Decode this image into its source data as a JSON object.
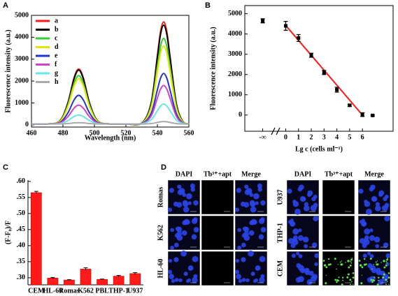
{
  "chart_data": [
    {
      "type": "line",
      "panel": "A",
      "x_label": "Wavelength (nm)",
      "y_label": "Fluorescence intensity (a.u.)",
      "x": [
        460,
        470,
        478,
        483,
        487,
        490,
        493,
        497,
        502,
        510,
        520,
        530,
        536,
        540,
        542,
        544,
        546,
        548,
        552,
        556,
        560
      ],
      "xlim": [
        460,
        560
      ],
      "xticks": [
        460,
        480,
        500,
        520,
        540,
        560
      ],
      "ylim": [
        -100,
        5000
      ],
      "yticks": [
        0,
        1000,
        2000,
        3000,
        4000,
        5000
      ],
      "legend": "upper left",
      "series": [
        {
          "name": "a",
          "color": "#ff1a1a",
          "values": [
            40,
            40,
            180,
            980,
            2140,
            2550,
            2140,
            980,
            180,
            40,
            40,
            80,
            1000,
            3180,
            4260,
            4700,
            4260,
            3180,
            1000,
            170,
            40
          ]
        },
        {
          "name": "b",
          "color": "#000000",
          "values": [
            40,
            40,
            180,
            960,
            2090,
            2500,
            2090,
            960,
            180,
            40,
            40,
            80,
            970,
            3080,
            4130,
            4550,
            4130,
            3080,
            970,
            170,
            40
          ]
        },
        {
          "name": "c",
          "color": "#33cc33",
          "values": [
            40,
            40,
            160,
            870,
            1890,
            2250,
            1890,
            870,
            160,
            40,
            40,
            70,
            850,
            2680,
            3580,
            3950,
            3580,
            2680,
            850,
            150,
            40
          ]
        },
        {
          "name": "d",
          "color": "#e6e600",
          "values": [
            40,
            40,
            160,
            810,
            1760,
            2100,
            1760,
            810,
            160,
            40,
            40,
            70,
            770,
            2440,
            3270,
            3600,
            3270,
            2440,
            770,
            140,
            40
          ]
        },
        {
          "name": "e",
          "color": "#2233cc",
          "values": [
            40,
            40,
            110,
            530,
            1130,
            1350,
            1130,
            530,
            110,
            40,
            40,
            60,
            520,
            1600,
            2130,
            2350,
            2130,
            1600,
            520,
            100,
            40
          ]
        },
        {
          "name": "f",
          "color": "#cc44cc",
          "values": [
            40,
            40,
            90,
            360,
            760,
            900,
            760,
            360,
            90,
            40,
            40,
            50,
            400,
            1230,
            1630,
            1800,
            1630,
            1230,
            400,
            90,
            40
          ]
        },
        {
          "name": "g",
          "color": "#66e6e6",
          "values": [
            40,
            40,
            60,
            190,
            380,
            450,
            380,
            190,
            60,
            40,
            40,
            50,
            230,
            650,
            860,
            950,
            860,
            650,
            230,
            70,
            40
          ]
        },
        {
          "name": "h",
          "color": "#aaaaaa",
          "values": [
            40,
            40,
            40,
            60,
            90,
            100,
            90,
            60,
            40,
            40,
            40,
            40,
            60,
            110,
            140,
            150,
            140,
            110,
            60,
            40,
            40
          ]
        }
      ]
    },
    {
      "type": "scatter",
      "panel": "B",
      "x_label": "Lg c (cells ml⁻¹)",
      "y_label": "Fluorescence intensity (a.u.)",
      "xlim": [
        -3.2,
        8.4
      ],
      "xticks": [
        {
          "value": -1.8,
          "label": "-∞"
        },
        0,
        1,
        2,
        3,
        4,
        5,
        6
      ],
      "ylim": [
        -800,
        5400
      ],
      "yticks": [
        0,
        1000,
        2000,
        3000,
        4000,
        5000
      ],
      "series": [
        {
          "color": "#000000",
          "x": [
            -1.8,
            0,
            1,
            2,
            3,
            4,
            5,
            6,
            6.8
          ],
          "values": [
            4650,
            4400,
            3800,
            2950,
            2100,
            1250,
            480,
            20,
            -20
          ],
          "errors": [
            100,
            220,
            170,
            100,
            100,
            120,
            50,
            90,
            30
          ]
        }
      ],
      "fit": {
        "color": "#ff1a1a",
        "x": [
          0,
          6
        ],
        "values": [
          4420,
          0
        ]
      }
    },
    {
      "type": "bar",
      "panel": "C",
      "y_label": "(F-F₀)/F",
      "color": "#ff1a1a",
      "categories": [
        "CEM",
        "HL-60",
        "Romas",
        "K562",
        "PBL",
        "THP-1",
        "U937"
      ],
      "values": [
        0.565,
        0.299,
        0.293,
        0.327,
        0.295,
        0.305,
        0.313
      ],
      "errors": [
        0.004,
        0.002,
        0.001,
        0.004,
        0.001,
        0.002,
        0.003
      ],
      "ylim": [
        0.278,
        0.604
      ],
      "yticks": [
        {
          "value": 0.3,
          "label": ".30"
        },
        {
          "value": 0.35,
          "label": ".35"
        },
        {
          "value": 0.4,
          "label": ".40"
        },
        {
          "value": 0.45,
          "label": ".45"
        },
        {
          "value": 0.5,
          "label": ".50"
        },
        {
          "value": 0.55,
          "label": ".55"
        },
        {
          "value": 0.6,
          "label": ".60"
        }
      ]
    }
  ],
  "figure_d": {
    "panel": "D",
    "blocks": [
      {
        "columns": [
          "DAPI",
          "Tb³⁺+apt",
          "Merge"
        ],
        "rows": [
          "Romas",
          "K562",
          "HL-60"
        ]
      },
      {
        "columns": [
          "DAPI",
          "Tb³⁺+apt",
          "Merge"
        ],
        "rows": [
          "U937",
          "THP-1",
          "CEM"
        ]
      }
    ]
  }
}
